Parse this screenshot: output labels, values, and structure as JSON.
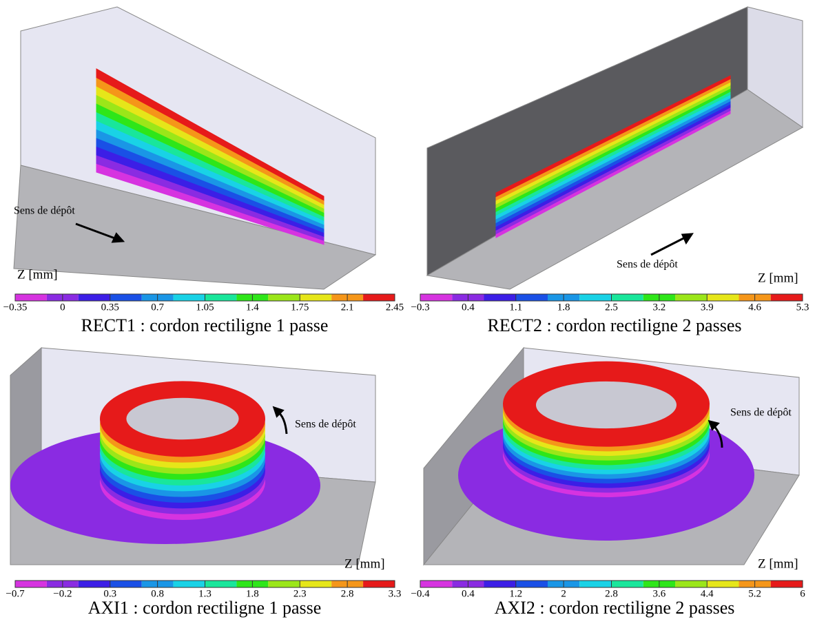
{
  "chart_data": [
    {
      "type": "surface3d",
      "title": "RECT1 : cordon rectiligne 1 passe",
      "colorbar_label": "Z [mm]",
      "annotation": "Sens de dépôt",
      "zlim": [
        -0.35,
        2.45
      ],
      "zticks": [
        {
          "value": -0.35,
          "label": "−0.35"
        },
        0,
        0.35,
        0.7,
        1.05,
        1.4,
        1.75,
        2.1,
        2.45
      ],
      "colors": [
        "#d633e0",
        "#8a2be2",
        "#3c1ee6",
        "#1a50e6",
        "#1a96e6",
        "#19d2e6",
        "#19e69b",
        "#2ee619",
        "#9be619",
        "#e6e619",
        "#f59619",
        "#e61a1a"
      ]
    },
    {
      "type": "surface3d",
      "title": "RECT2 : cordon rectiligne 2 passes",
      "colorbar_label": "Z [mm]",
      "annotation": "Sens de dépôt",
      "zlim": [
        -0.3,
        5.3
      ],
      "zticks": [
        {
          "value": -0.3,
          "label": "−0.3"
        },
        0.4,
        1.1,
        1.8,
        2.5,
        3.2,
        3.9,
        4.6,
        5.3
      ],
      "colors": [
        "#d633e0",
        "#8a2be2",
        "#3c1ee6",
        "#1a50e6",
        "#1a96e6",
        "#19d2e6",
        "#19e69b",
        "#2ee619",
        "#9be619",
        "#e6e619",
        "#f59619",
        "#e61a1a"
      ]
    },
    {
      "type": "surface3d",
      "title": "AXI1 : cordon rectiligne 1 passe",
      "colorbar_label": "Z [mm]",
      "annotation": "Sens de dépôt",
      "zlim": [
        -0.7,
        3.3
      ],
      "zticks": [
        {
          "value": -0.7,
          "label": "−0.7"
        },
        {
          "value": -0.2,
          "label": "−0.2"
        },
        0.3,
        0.8,
        1.3,
        1.8,
        2.3,
        2.8,
        3.3
      ],
      "colors": [
        "#d633e0",
        "#8a2be2",
        "#3c1ee6",
        "#1a50e6",
        "#1a96e6",
        "#19d2e6",
        "#19e69b",
        "#2ee619",
        "#9be619",
        "#e6e619",
        "#f59619",
        "#e61a1a"
      ]
    },
    {
      "type": "surface3d",
      "title": "AXI2 : cordon rectiligne 2 passes",
      "colorbar_label": "Z [mm]",
      "annotation": "Sens de dépôt",
      "zlim": [
        -0.4,
        6
      ],
      "zticks": [
        {
          "value": -0.4,
          "label": "−0.4"
        },
        0.4,
        1.2,
        2,
        2.8,
        3.6,
        4.4,
        5.2,
        6
      ],
      "colors": [
        "#d633e0",
        "#8a2be2",
        "#3c1ee6",
        "#1a50e6",
        "#1a96e6",
        "#19d2e6",
        "#19e69b",
        "#2ee619",
        "#9be619",
        "#e6e619",
        "#f59619",
        "#e61a1a"
      ]
    }
  ]
}
